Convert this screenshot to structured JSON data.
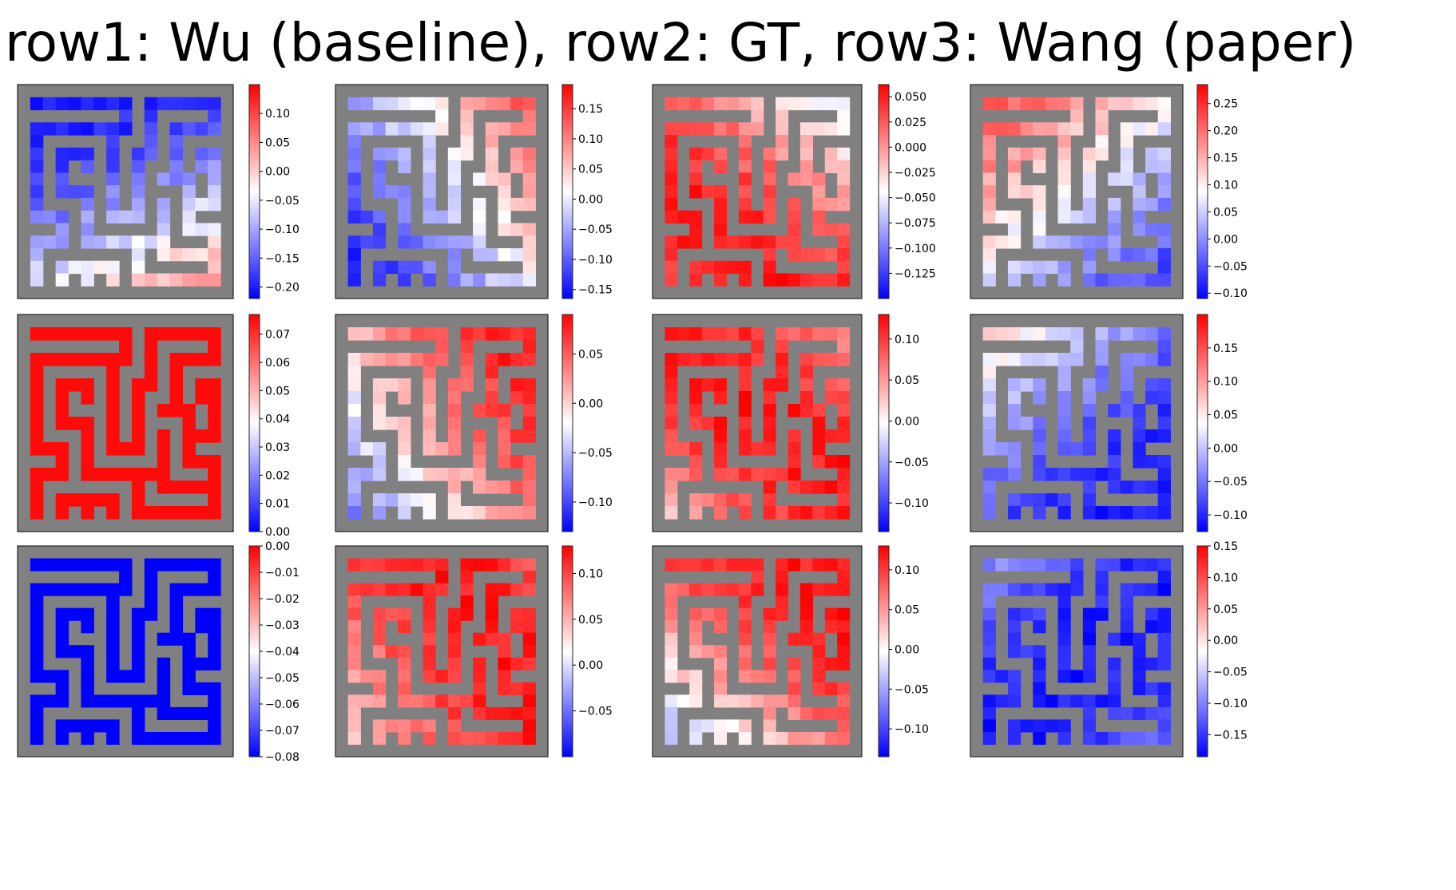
{
  "title": "row1: Wu (baseline), row2: GT, row3: Wang (paper)",
  "colors": {
    "wall": "#808080",
    "low": "#0000ff",
    "mid": "#ffffff",
    "high": "#ff0000",
    "frame": "#222222"
  },
  "chart_data": [
    {
      "type": "heatmap",
      "row": 1,
      "col": 1,
      "colormap": "bwr",
      "vmin": -0.22,
      "vmax": 0.15,
      "colorbar_ticks": [
        "0.10",
        "0.05",
        "0.00",
        "−0.05",
        "−0.10",
        "−0.15",
        "−0.20"
      ],
      "colorbar_values": [
        0.1,
        0.05,
        0.0,
        -0.05,
        -0.1,
        -0.15,
        -0.2
      ]
    },
    {
      "type": "heatmap",
      "row": 1,
      "col": 2,
      "colormap": "bwr",
      "vmin": -0.165,
      "vmax": 0.19,
      "colorbar_ticks": [
        "0.15",
        "0.10",
        "0.05",
        "0.00",
        "−0.05",
        "−0.10",
        "−0.15"
      ],
      "colorbar_values": [
        0.15,
        0.1,
        0.05,
        0.0,
        -0.05,
        -0.1,
        -0.15
      ]
    },
    {
      "type": "heatmap",
      "row": 1,
      "col": 3,
      "colormap": "bwr",
      "vmin": -0.15,
      "vmax": 0.062,
      "colorbar_ticks": [
        "0.050",
        "0.025",
        "0.000",
        "−0.025",
        "−0.050",
        "−0.075",
        "−0.100",
        "−0.125"
      ],
      "colorbar_values": [
        0.05,
        0.025,
        0.0,
        -0.025,
        -0.05,
        -0.075,
        -0.1,
        -0.125
      ]
    },
    {
      "type": "heatmap",
      "row": 1,
      "col": 4,
      "colormap": "bwr",
      "vmin": -0.11,
      "vmax": 0.285,
      "colorbar_ticks": [
        "0.25",
        "0.20",
        "0.15",
        "0.10",
        "0.05",
        "0.00",
        "−0.05",
        "−0.10"
      ],
      "colorbar_values": [
        0.25,
        0.2,
        0.15,
        0.1,
        0.05,
        0.0,
        -0.05,
        -0.1
      ]
    },
    {
      "type": "heatmap",
      "row": 2,
      "col": 1,
      "colormap": "bwr",
      "vmin": 0.0,
      "vmax": 0.077,
      "colorbar_ticks": [
        "0.07",
        "0.06",
        "0.05",
        "0.04",
        "0.03",
        "0.02",
        "0.01",
        "0.00"
      ],
      "colorbar_values": [
        0.07,
        0.06,
        0.05,
        0.04,
        0.03,
        0.02,
        0.01,
        0.0
      ]
    },
    {
      "type": "heatmap",
      "row": 2,
      "col": 2,
      "colormap": "bwr",
      "vmin": -0.13,
      "vmax": 0.09,
      "colorbar_ticks": [
        "0.05",
        "0.00",
        "−0.05",
        "−0.10"
      ],
      "colorbar_values": [
        0.05,
        0.0,
        -0.05,
        -0.1
      ]
    },
    {
      "type": "heatmap",
      "row": 2,
      "col": 3,
      "colormap": "bwr",
      "vmin": -0.135,
      "vmax": 0.13,
      "colorbar_ticks": [
        "0.10",
        "0.05",
        "0.00",
        "−0.05",
        "−0.10"
      ],
      "colorbar_values": [
        0.1,
        0.05,
        0.0,
        -0.05,
        -0.1
      ]
    },
    {
      "type": "heatmap",
      "row": 2,
      "col": 4,
      "colormap": "bwr",
      "vmin": -0.125,
      "vmax": 0.2,
      "colorbar_ticks": [
        "0.15",
        "0.10",
        "0.05",
        "0.00",
        "−0.05",
        "−0.10"
      ],
      "colorbar_values": [
        0.15,
        0.1,
        0.05,
        0.0,
        -0.05,
        -0.1
      ]
    },
    {
      "type": "heatmap",
      "row": 3,
      "col": 1,
      "colormap": "bwr",
      "vmin": -0.08,
      "vmax": 0.0,
      "colorbar_ticks": [
        "0.00",
        "−0.01",
        "−0.02",
        "−0.03",
        "−0.04",
        "−0.05",
        "−0.06",
        "−0.07",
        "−0.08"
      ],
      "colorbar_values": [
        0.0,
        -0.01,
        -0.02,
        -0.03,
        -0.04,
        -0.05,
        -0.06,
        -0.07,
        -0.08
      ]
    },
    {
      "type": "heatmap",
      "row": 3,
      "col": 2,
      "colormap": "bwr",
      "vmin": -0.1,
      "vmax": 0.13,
      "colorbar_ticks": [
        "0.10",
        "0.05",
        "0.00",
        "−0.05"
      ],
      "colorbar_values": [
        0.1,
        0.05,
        0.0,
        -0.05
      ]
    },
    {
      "type": "heatmap",
      "row": 3,
      "col": 3,
      "colormap": "bwr",
      "vmin": -0.135,
      "vmax": 0.13,
      "colorbar_ticks": [
        "0.10",
        "0.05",
        "0.00",
        "−0.05",
        "−0.10"
      ],
      "colorbar_values": [
        0.1,
        0.05,
        0.0,
        -0.05,
        -0.1
      ]
    },
    {
      "type": "heatmap",
      "row": 3,
      "col": 4,
      "colormap": "bwr",
      "vmin": -0.185,
      "vmax": 0.15,
      "colorbar_ticks": [
        "0.15",
        "0.10",
        "0.05",
        "0.00",
        "−0.05",
        "−0.10",
        "−0.15"
      ],
      "colorbar_values": [
        0.15,
        0.1,
        0.05,
        0.0,
        -0.05,
        -0.1,
        -0.15
      ]
    }
  ]
}
